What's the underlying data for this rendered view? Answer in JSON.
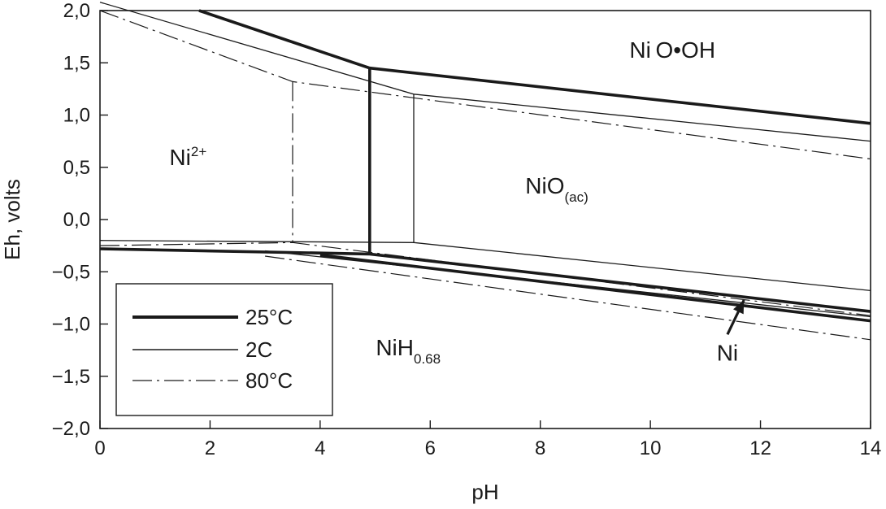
{
  "chart_data": {
    "type": "line",
    "xlabel": "pH",
    "ylabel": "Eh, volts",
    "xlim": [
      0,
      14
    ],
    "ylim": [
      -2.0,
      2.0
    ],
    "xticks": [
      0,
      2,
      4,
      6,
      8,
      10,
      12,
      14
    ],
    "yticks": [
      2.0,
      1.5,
      1.0,
      0.5,
      0.0,
      -0.5,
      -1.0,
      -1.5,
      -2.0
    ],
    "ytick_labels": [
      "2,0",
      "1,5",
      "1,0",
      "0,5",
      "0,0",
      "−0,5",
      "−1,0",
      "−1,5",
      "−2,0"
    ],
    "grid": false,
    "legend_position": "bottom-left",
    "series": [
      {
        "name": "25°C",
        "style": "thick",
        "color": "#1a1a1a",
        "segments": [
          [
            [
              1.8,
              2.0
            ],
            [
              4.9,
              1.45
            ],
            [
              14.0,
              0.92
            ]
          ],
          [
            [
              4.9,
              1.45
            ],
            [
              4.9,
              -0.33
            ]
          ],
          [
            [
              0.0,
              -0.28
            ],
            [
              4.9,
              -0.33
            ],
            [
              14.0,
              -0.88
            ]
          ],
          [
            [
              4.0,
              -0.34
            ],
            [
              14.0,
              -0.97
            ]
          ]
        ]
      },
      {
        "name": "2C",
        "style": "thin",
        "color": "#1a1a1a",
        "segments": [
          [
            [
              0.0,
              2.08
            ],
            [
              5.7,
              1.2
            ],
            [
              14.0,
              0.75
            ]
          ],
          [
            [
              5.7,
              1.2
            ],
            [
              5.7,
              -0.22
            ]
          ],
          [
            [
              0.0,
              -0.2
            ],
            [
              5.7,
              -0.22
            ],
            [
              14.0,
              -0.68
            ]
          ],
          [
            [
              3.0,
              -0.3
            ],
            [
              14.0,
              -0.93
            ]
          ]
        ]
      },
      {
        "name": "80°C",
        "style": "dash-dot",
        "color": "#1a1a1a",
        "segments": [
          [
            [
              0.0,
              2.0
            ],
            [
              3.5,
              1.32
            ],
            [
              14.0,
              0.58
            ]
          ],
          [
            [
              3.5,
              1.32
            ],
            [
              3.5,
              -0.22
            ]
          ],
          [
            [
              0.0,
              -0.25
            ],
            [
              3.5,
              -0.22
            ],
            [
              14.0,
              -0.92
            ]
          ],
          [
            [
              3.0,
              -0.35
            ],
            [
              14.0,
              -1.15
            ]
          ]
        ]
      }
    ],
    "regions": [
      {
        "label": "Ni O•OH",
        "x": 10.4,
        "y": 1.55
      },
      {
        "label_main": "Ni",
        "label_sup": "2+",
        "x": 1.6,
        "y": 0.52
      },
      {
        "label_main": "NiO",
        "label_sub": "(ac)",
        "x": 8.3,
        "y": 0.25
      },
      {
        "label_main": "NiH",
        "label_sub": "0.68",
        "x": 5.6,
        "y": -1.3
      }
    ],
    "annotations": [
      {
        "label": "Ni",
        "text_x": 11.4,
        "text_y": -1.35,
        "arrow_from": [
          11.4,
          -1.1
        ],
        "arrow_to": [
          11.7,
          -0.77
        ]
      }
    ]
  }
}
